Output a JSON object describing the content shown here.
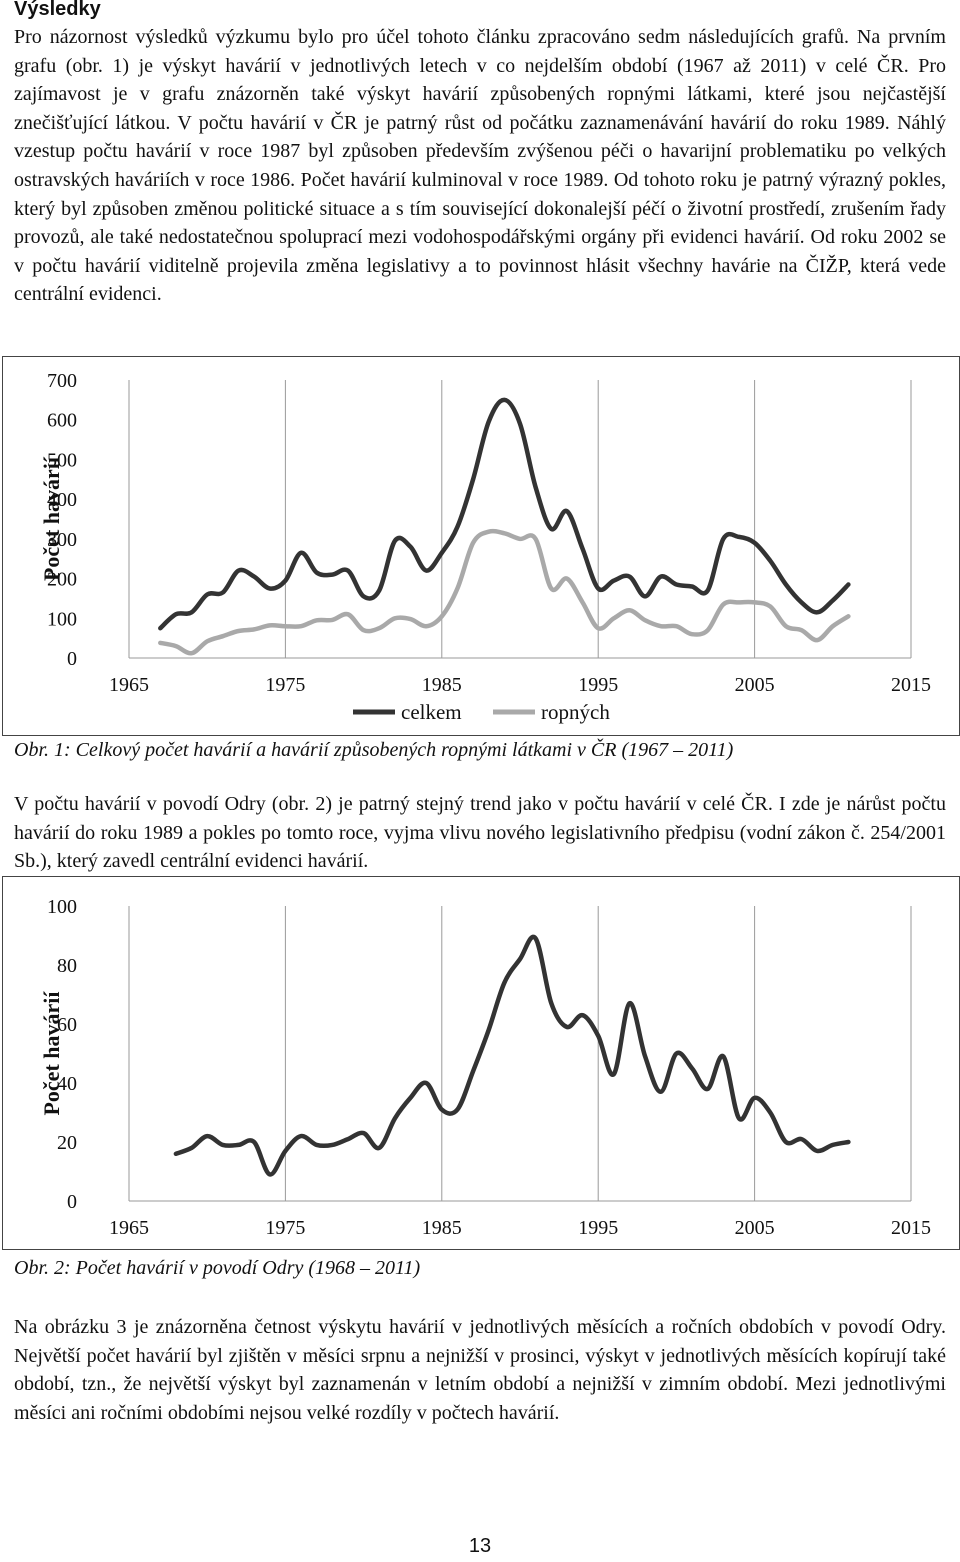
{
  "section_heading": "Výsledky",
  "paragraphs": {
    "p1": "Pro názornost výsledků výzkumu bylo pro účel tohoto článku zpracováno sedm následujících grafů. Na prvním grafu (obr. 1) je výskyt havárií v jednotlivých letech v co nejdelším období (1967 až 2011) v celé ČR. Pro zajímavost je v grafu znázorněn také výskyt havárií způsobených ropnými látkami, které jsou nejčastější znečišťující látkou. V počtu havárií v ČR je patrný růst od počátku zaznamenávání havárií do roku 1989. Náhlý vzestup počtu havárií v roce 1987 byl způsoben především zvýšenou péči o havarijní problematiku po velkých ostravských haváriích v roce 1986. Počet havárií kulminoval v roce 1989. Od tohoto roku je patrný výrazný pokles, který byl způsoben změnou politické situace a s tím související dokonalejší péčí o životní prostředí, zrušením řady provozů, ale také nedostatečnou spoluprací mezi vodohospodářskými orgány při evidenci havárií. Od roku 2002 se v počtu havárií viditelně projevila změna legislativy a to povinnost hlásit všechny havárie na ČIŽP, která vede centrální evidenci.",
    "p2": "V počtu havárií v povodí Odry (obr. 2) je patrný stejný trend jako v počtu havárií v celé ČR. I zde je nárůst počtu havárií do roku 1989 a pokles po tomto roce, vyjma vlivu nového legislativního předpisu (vodní zákon č. 254/2001 Sb.), který zavedl centrální evidenci havárií.",
    "p3": "Na obrázku 3 je znázorněna četnost výskytu havárií v jednotlivých měsících a ročních obdobích v povodí Odry. Největší počet havárií byl zjištěn v měsíci srpnu a nejnižší v prosinci, výskyt v jednotlivých měsících kopírují také období, tzn., že největší výskyt byl zaznamenán v letním období a nejnižší v zimním období. Mezi jednotlivými měsíci ani ročními obdobími nejsou velké rozdíly v počtech havárií."
  },
  "captions": {
    "fig1": "Obr. 1: Celkový počet havárií a havárií způsobených ropnými látkami v ČR (1967 – 2011)",
    "fig2": "Obr. 2: Počet havárií v povodí Odry (1968 – 2011)"
  },
  "page_number": "13",
  "chart_data": [
    {
      "type": "line",
      "title": "",
      "xlabel": "",
      "ylabel": "Počet havárií",
      "xlim": [
        1965,
        2015
      ],
      "ylim": [
        0,
        700
      ],
      "x_ticks": [
        "1965",
        "1975",
        "1985",
        "1995",
        "2005",
        "2015"
      ],
      "y_ticks": [
        "0",
        "100",
        "200",
        "300",
        "400",
        "500",
        "600",
        "700"
      ],
      "grid": "vertical",
      "legend": "bottom",
      "series": [
        {
          "name": "celkem",
          "color": "#333333",
          "x": [
            1967,
            1968,
            1969,
            1970,
            1971,
            1972,
            1973,
            1974,
            1975,
            1976,
            1977,
            1978,
            1979,
            1980,
            1981,
            1982,
            1983,
            1984,
            1985,
            1986,
            1987,
            1988,
            1989,
            1990,
            1991,
            1992,
            1993,
            1994,
            1995,
            1996,
            1997,
            1998,
            1999,
            2000,
            2001,
            2002,
            2003,
            2004,
            2005,
            2006,
            2007,
            2008,
            2009,
            2010,
            2011
          ],
          "y": [
            75,
            110,
            115,
            160,
            165,
            220,
            205,
            175,
            195,
            265,
            215,
            210,
            220,
            155,
            170,
            295,
            280,
            220,
            265,
            330,
            450,
            595,
            650,
            590,
            430,
            325,
            370,
            275,
            175,
            195,
            205,
            155,
            205,
            185,
            180,
            170,
            300,
            305,
            290,
            245,
            185,
            140,
            115,
            145,
            185
          ]
        },
        {
          "name": "ropných",
          "color": "#a9a9a9",
          "x": [
            1967,
            1968,
            1969,
            1970,
            1971,
            1972,
            1973,
            1974,
            1975,
            1976,
            1977,
            1978,
            1979,
            1980,
            1981,
            1982,
            1983,
            1984,
            1985,
            1986,
            1987,
            1988,
            1989,
            1990,
            1991,
            1992,
            1993,
            1994,
            1995,
            1996,
            1997,
            1998,
            1999,
            2000,
            2001,
            2002,
            2003,
            2004,
            2005,
            2006,
            2007,
            2008,
            2009,
            2010,
            2011
          ],
          "y": [
            38,
            30,
            12,
            42,
            55,
            68,
            72,
            82,
            80,
            80,
            95,
            96,
            110,
            70,
            75,
            100,
            98,
            80,
            105,
            175,
            290,
            318,
            314,
            300,
            300,
            175,
            200,
            140,
            75,
            100,
            120,
            95,
            80,
            80,
            60,
            70,
            135,
            140,
            140,
            130,
            80,
            70,
            45,
            80,
            105
          ]
        }
      ]
    },
    {
      "type": "line",
      "title": "",
      "xlabel": "",
      "ylabel": "Počet havárií",
      "xlim": [
        1965,
        2015
      ],
      "ylim": [
        0,
        100
      ],
      "x_ticks": [
        "1965",
        "1975",
        "1985",
        "1995",
        "2005",
        "2015"
      ],
      "y_ticks": [
        "0",
        "20",
        "40",
        "60",
        "80",
        "100"
      ],
      "grid": "vertical",
      "legend": "none",
      "series": [
        {
          "color": "#333333",
          "x": [
            1968,
            1969,
            1970,
            1971,
            1972,
            1973,
            1974,
            1975,
            1976,
            1977,
            1978,
            1979,
            1980,
            1981,
            1982,
            1983,
            1984,
            1985,
            1986,
            1987,
            1988,
            1989,
            1990,
            1991,
            1992,
            1993,
            1994,
            1995,
            1996,
            1997,
            1998,
            1999,
            2000,
            2001,
            2002,
            2003,
            2004,
            2005,
            2006,
            2007,
            2008,
            2009,
            2010,
            2011
          ],
          "y": [
            16,
            18,
            22,
            19,
            19,
            20,
            9,
            17,
            22,
            19,
            19,
            21,
            23,
            18,
            28,
            35,
            40,
            31,
            31,
            44,
            58,
            74,
            82,
            89,
            67,
            59,
            63,
            56,
            43,
            67,
            49,
            37,
            50,
            45,
            38,
            49,
            28,
            35,
            30,
            20,
            21,
            17,
            19,
            20
          ]
        }
      ]
    }
  ]
}
